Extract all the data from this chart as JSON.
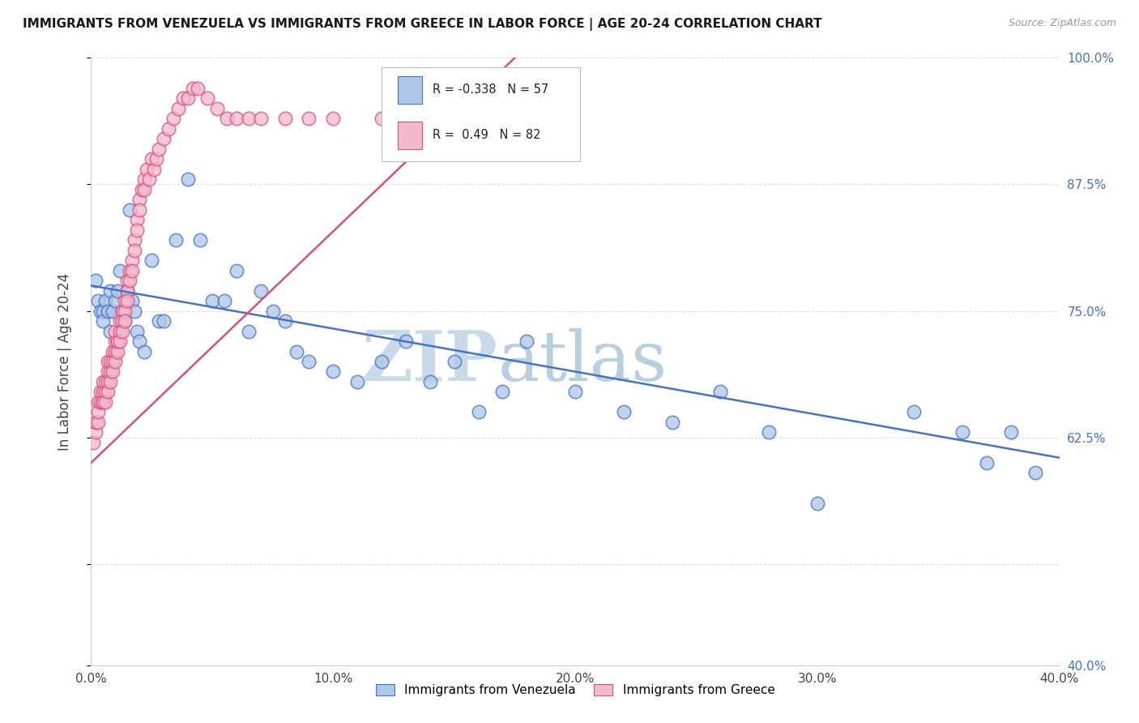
{
  "title": "IMMIGRANTS FROM VENEZUELA VS IMMIGRANTS FROM GREECE IN LABOR FORCE | AGE 20-24 CORRELATION CHART",
  "source": "Source: ZipAtlas.com",
  "ylabel": "In Labor Force | Age 20-24",
  "r1": -0.338,
  "n1": 57,
  "r2": 0.49,
  "n2": 82,
  "color_venezuela": "#aec6e8",
  "color_greece": "#f4b8cc",
  "line_color_venezuela": "#4472c4",
  "line_color_greece": "#d94f7a",
  "legend_label1": "Immigrants from Venezuela",
  "legend_label2": "Immigrants from Greece",
  "xlim": [
    0.0,
    0.4
  ],
  "ylim": [
    0.4,
    1.0
  ],
  "xticks": [
    0.0,
    0.1,
    0.2,
    0.3,
    0.4
  ],
  "yticks": [
    0.4,
    0.5,
    0.625,
    0.75,
    0.875,
    1.0
  ],
  "ytick_labels_right": [
    "40.0%",
    "",
    "62.5%",
    "75.0%",
    "87.5%",
    "100.0%"
  ],
  "xtick_labels": [
    "0.0%",
    "10.0%",
    "20.0%",
    "30.0%",
    "40.0%"
  ],
  "watermark_zip": "ZIP",
  "watermark_atlas": "atlas",
  "background_color": "#ffffff",
  "grid_color": "#e0e0e0",
  "title_color": "#1a1a1a",
  "tick_color_right": "#4472c4",
  "watermark_color": "#d6e4f0"
}
